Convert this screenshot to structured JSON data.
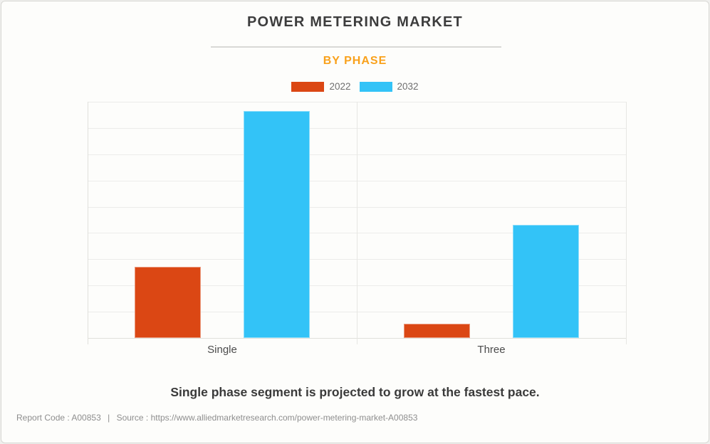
{
  "page": {
    "title": "POWER METERING MARKET",
    "subtitle": "BY PHASE",
    "statement": "Single phase segment is projected to grow at the fastest pace."
  },
  "footer": {
    "report_code": "Report Code : A00853",
    "separator": "|",
    "source": "Source : https://www.alliedmarketresearch.com/power-metering-market-A00853"
  },
  "chart_data": {
    "type": "bar",
    "title": "POWER METERING MARKET",
    "subtitle": "BY PHASE",
    "categories": [
      "Single",
      "Three"
    ],
    "series": [
      {
        "name": "2022",
        "color": "#db4714",
        "values": [
          30,
          6
        ]
      },
      {
        "name": "2032",
        "color": "#33c3f7",
        "values": [
          96,
          48
        ]
      }
    ],
    "xlabel": "",
    "ylabel": "",
    "ylim": [
      0,
      100
    ],
    "y_axis_tick_labels_visible": false,
    "grid": true,
    "gridline_count": 10,
    "legend_position": "top"
  },
  "colors": {
    "accent_orange": "#f9a11b",
    "bar_2022": "#db4714",
    "bar_2032": "#33c3f7",
    "title_text": "#3d3d3d",
    "grid": "#ececea",
    "card_background": "#fdfdfb",
    "card_border": "#d8d8d4"
  }
}
